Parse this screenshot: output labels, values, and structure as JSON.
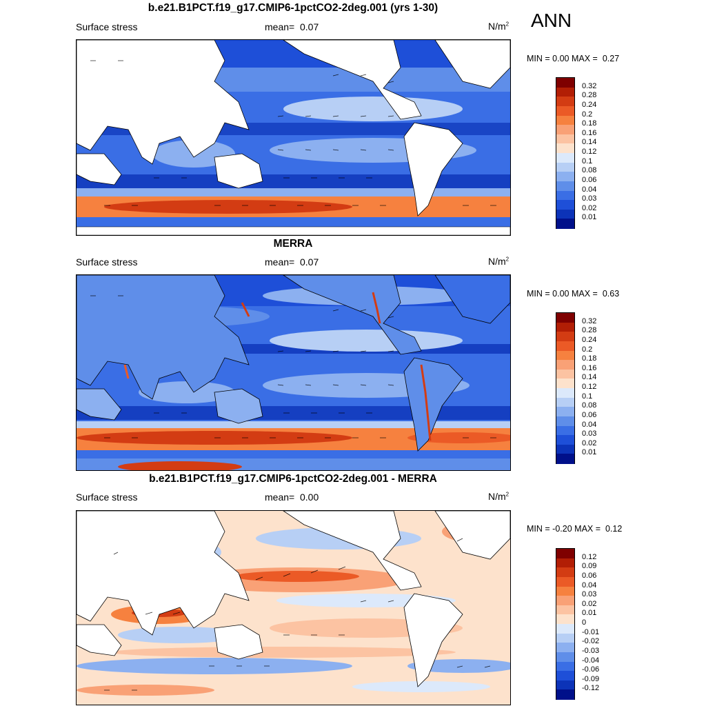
{
  "season": "ANN",
  "panels": [
    {
      "title": "b.e21.B1PCT.f19_g17.CMIP6-1pctCO2-2deg.001 (yrs 1-30)",
      "left_label": "Surface stress",
      "mean_label": "mean=",
      "mean_value": "0.07",
      "units_base": "N/m",
      "units_exp": "2",
      "min_label": "MIN =",
      "min_value": "0.00",
      "max_label": "MAX =",
      "max_value": "0.27",
      "colorbar": {
        "labels": [
          "0.32",
          "0.28",
          "0.24",
          "0.2",
          "0.18",
          "0.16",
          "0.14",
          "0.12",
          "0.1",
          "0.08",
          "0.06",
          "0.04",
          "0.03",
          "0.02",
          "0.01"
        ],
        "colors": [
          "#7f0000",
          "#b21e05",
          "#d33c13",
          "#eb5a26",
          "#f6813f",
          "#f9a176",
          "#fcc3a2",
          "#fde2cc",
          "#dce9fb",
          "#b7cff5",
          "#8cb0f0",
          "#5f8ee9",
          "#3a6ee5",
          "#1e4fd8",
          "#0c33b8",
          "#00108a"
        ]
      }
    },
    {
      "title": "MERRA",
      "left_label": "Surface stress",
      "mean_label": "mean=",
      "mean_value": "0.07",
      "units_base": "N/m",
      "units_exp": "2",
      "min_label": "MIN =",
      "min_value": "0.00",
      "max_label": "MAX =",
      "max_value": "0.63",
      "colorbar": {
        "labels": [
          "0.32",
          "0.28",
          "0.24",
          "0.2",
          "0.18",
          "0.16",
          "0.14",
          "0.12",
          "0.1",
          "0.08",
          "0.06",
          "0.04",
          "0.03",
          "0.02",
          "0.01"
        ],
        "colors": [
          "#7f0000",
          "#b21e05",
          "#d33c13",
          "#eb5a26",
          "#f6813f",
          "#f9a176",
          "#fcc3a2",
          "#fde2cc",
          "#dce9fb",
          "#b7cff5",
          "#8cb0f0",
          "#5f8ee9",
          "#3a6ee5",
          "#1e4fd8",
          "#0c33b8",
          "#00108a"
        ]
      }
    },
    {
      "title": "b.e21.B1PCT.f19_g17.CMIP6-1pctCO2-2deg.001 - MERRA",
      "left_label": "Surface stress",
      "mean_label": "mean=",
      "mean_value": "0.00",
      "units_base": "N/m",
      "units_exp": "2",
      "min_label": "MIN =",
      "min_value": "-0.20",
      "max_label": "MAX =",
      "max_value": "0.12",
      "colorbar": {
        "labels": [
          "0.12",
          "0.09",
          "0.06",
          "0.04",
          "0.03",
          "0.02",
          "0.01",
          "0",
          "-0.01",
          "-0.02",
          "-0.03",
          "-0.04",
          "-0.06",
          "-0.09",
          "-0.12"
        ],
        "colors": [
          "#7f0000",
          "#b21e05",
          "#d33c13",
          "#eb5a26",
          "#f6813f",
          "#f9a176",
          "#fcc3a2",
          "#fde2cc",
          "#dce9fb",
          "#b7cff5",
          "#8cb0f0",
          "#5f8ee9",
          "#3a6ee5",
          "#1e4fd8",
          "#0c33b8",
          "#00108a"
        ]
      }
    }
  ]
}
